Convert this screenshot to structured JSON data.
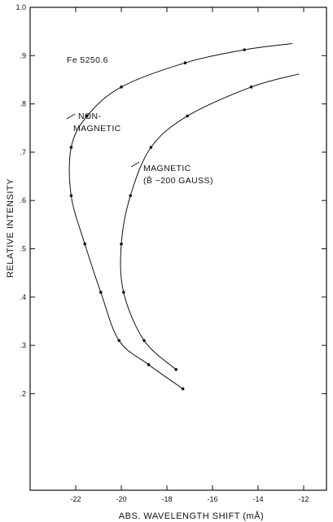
{
  "chart_data": {
    "type": "line",
    "xlabel": "ABS. WAVELENGTH SHIFT  (mÅ)",
    "ylabel": "RELATIVE  INTENSITY",
    "xlim": [
      -24,
      -11
    ],
    "ylim": [
      0.0,
      1.0
    ],
    "x_ticks": [
      -22,
      -20,
      -18,
      -16,
      -14,
      -12
    ],
    "x_tick_labels": [
      "-22",
      "-20",
      "-18",
      "-16",
      "-14",
      "-12"
    ],
    "y_ticks": [
      0.2,
      0.3,
      0.4,
      0.5,
      0.6,
      0.7,
      0.8,
      0.9,
      1.0
    ],
    "y_tick_labels": [
      ".2",
      ".3",
      ".4",
      ".5",
      ".6",
      ".7",
      ".8",
      ".9",
      "1.0"
    ],
    "grid": false,
    "annotations": {
      "line_label": "Fe 5250.6",
      "nonmagnetic_1": "NON-",
      "nonmagnetic_2": "MAGNETIC",
      "magnetic_1": "MAGNETIC",
      "magnetic_2": "(B̄ ~200 GAUSS)"
    },
    "series": [
      {
        "name": "NON-MAGNETIC",
        "x": [
          -17.3,
          -18.8,
          -20.1,
          -20.9,
          -21.6,
          -22.2,
          -22.2,
          -21.5,
          -20.0,
          -17.2,
          -14.6,
          -12.5
        ],
        "y": [
          0.21,
          0.26,
          0.31,
          0.41,
          0.51,
          0.61,
          0.71,
          0.775,
          0.835,
          0.885,
          0.912,
          0.925
        ]
      },
      {
        "name": "MAGNETIC",
        "x": [
          -17.6,
          -19.0,
          -19.9,
          -20.0,
          -19.6,
          -18.7,
          -17.1,
          -14.3,
          -12.2
        ],
        "y": [
          0.25,
          0.31,
          0.41,
          0.51,
          0.61,
          0.71,
          0.775,
          0.835,
          0.862
        ]
      }
    ]
  }
}
